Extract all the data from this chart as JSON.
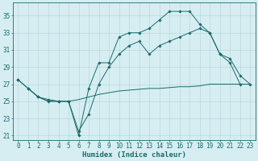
{
  "xlabel": "Humidex (Indice chaleur)",
  "bg_color": "#d6eef2",
  "grid_color": "#b8d8de",
  "line_color": "#1a6b6b",
  "xlim": [
    -0.5,
    23.5
  ],
  "ylim": [
    20.5,
    36.5
  ],
  "yticks": [
    21,
    23,
    25,
    27,
    29,
    31,
    33,
    35
  ],
  "xticks": [
    0,
    1,
    2,
    3,
    4,
    5,
    6,
    7,
    8,
    9,
    10,
    11,
    12,
    13,
    14,
    15,
    16,
    17,
    18,
    19,
    20,
    21,
    22,
    23
  ],
  "line1_x": [
    0,
    1,
    2,
    3,
    4,
    5,
    6,
    7,
    8,
    9,
    10,
    11,
    12,
    13,
    14,
    15,
    16,
    17,
    18,
    19,
    20,
    21,
    22,
    23
  ],
  "line1_y": [
    27.5,
    26.5,
    25.5,
    25.0,
    25.0,
    25.0,
    21.0,
    26.5,
    29.5,
    29.5,
    32.5,
    33.0,
    33.0,
    33.5,
    34.5,
    35.5,
    35.5,
    35.5,
    34.0,
    33.0,
    30.5,
    29.5,
    27.0,
    null
  ],
  "line2_x": [
    0,
    1,
    2,
    3,
    4,
    5,
    6,
    7,
    8,
    9,
    10,
    11,
    12,
    13,
    14,
    15,
    16,
    17,
    18,
    19,
    20,
    21,
    22,
    23
  ],
  "line2_y": [
    27.5,
    26.5,
    25.5,
    25.2,
    25.0,
    25.0,
    21.5,
    23.5,
    27.0,
    29.0,
    30.5,
    31.5,
    32.0,
    30.5,
    31.5,
    32.0,
    32.5,
    33.0,
    33.5,
    33.0,
    30.5,
    30.0,
    28.0,
    27.0
  ],
  "line3_x": [
    1,
    2,
    3,
    4,
    5,
    6,
    7,
    8,
    9,
    10,
    11,
    12,
    13,
    14,
    15,
    16,
    17,
    18,
    19,
    20,
    21,
    22,
    23
  ],
  "line3_y": [
    26.5,
    25.5,
    25.0,
    25.0,
    25.0,
    25.2,
    25.5,
    25.8,
    26.0,
    26.2,
    26.3,
    26.4,
    26.5,
    26.5,
    26.6,
    26.7,
    26.7,
    26.8,
    27.0,
    27.0,
    27.0,
    27.0,
    27.0
  ],
  "tick_fontsize": 5.5,
  "label_fontsize": 6.5
}
